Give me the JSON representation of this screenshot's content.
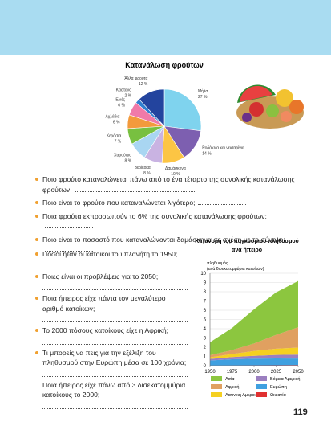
{
  "chart_data": [
    {
      "type": "pie",
      "title": "Κατανάλωση φρούτων",
      "categories": [
        "Μήλα",
        "Ροδάκινα και νεκταρίνια",
        "Δαμάσκηνα",
        "Βερίκοκα",
        "Χαρούπια",
        "Κεράσια",
        "Αχλάδια",
        "Ελιές",
        "Κάστανα",
        "Άλλα φρούτα"
      ],
      "values": [
        27,
        14,
        10,
        8,
        8,
        7,
        6,
        6,
        2,
        12
      ],
      "value_labels": [
        "27 %",
        "14 %",
        "10 %",
        "8 %",
        "8 %",
        "7 %",
        "6 %",
        "6 %",
        "2 %",
        "12 %"
      ],
      "colors": [
        "#7fd3ee",
        "#7d5fb0",
        "#fcc544",
        "#c9b3e2",
        "#a9d6f2",
        "#78c040",
        "#f39a3c",
        "#f07aa8",
        "#2f7fd0",
        "#23449e"
      ]
    },
    {
      "type": "area",
      "stacked": true,
      "title": [
        "Κατανομή του παγκόσμιου πληθυσμού",
        "ανά ήπειρο"
      ],
      "y_label": [
        "πληθυσμός",
        "(ανά δισεκατομμύρια κατοίκων)"
      ],
      "x": [
        1950,
        1975,
        2000,
        2025,
        2050
      ],
      "xlim": [
        1950,
        2050
      ],
      "xticks": [
        1950,
        1975,
        2000,
        2025,
        2050
      ],
      "ylim": [
        0,
        10
      ],
      "yticks": [
        0,
        1,
        2,
        3,
        4,
        5,
        6,
        7,
        8,
        9,
        10
      ],
      "grid": true,
      "series": [
        {
          "name": "Ασία",
          "color": "#8cc63f",
          "values": [
            1.4,
            2.4,
            3.7,
            4.6,
            5.0
          ]
        },
        {
          "name": "Αφρική",
          "color": "#e0a060",
          "values": [
            0.23,
            0.42,
            0.81,
            1.5,
            2.2
          ]
        },
        {
          "name": "Λατινική Αμερική",
          "color": "#f5d020",
          "values": [
            0.17,
            0.32,
            0.52,
            0.68,
            0.76
          ]
        },
        {
          "name": "Βόρεια Αμερική",
          "color": "#9b7fc0",
          "values": [
            0.17,
            0.24,
            0.31,
            0.38,
            0.43
          ]
        },
        {
          "name": "Ευρώπη",
          "color": "#3fa0e0",
          "values": [
            0.55,
            0.68,
            0.73,
            0.74,
            0.71
          ]
        },
        {
          "name": "Ωκεανία",
          "color": "#e03030",
          "values": [
            0.013,
            0.02,
            0.03,
            0.04,
            0.06
          ]
        }
      ]
    }
  ],
  "fruit_questions": [
    "Ποιο φρούτο καταναλώνεται πάνω από το ένα τέταρτο της συνολικής κατανάλωσης φρούτων;",
    "Ποιο είναι το φρούτο που καταναλώνεται λιγότερο;",
    "Ποια φρούτα εκπροσωπούν το 6% της συνολικής κατανάλωσης φρούτων;",
    "Ποιο είναι το ποσοστό που καταναλώνονται δαμάσκηνα σε σχέση με το σύνολο;"
  ],
  "population_questions": [
    "Πόσοι ήταν οι κάτοικοι του πλανήτη το 1950;",
    "Ποιες είναι οι προβλέψεις για το 2050;",
    "Ποια ήπειρος είχε πάντα τον μεγαλύτερο αριθμό κατοίκων;",
    "Το 2000 πόσους κατοίκους είχε η Αφρική;",
    "Τι μπορείς να πεις για την εξέλιξη του πληθυσμού στην Ευρώπη μέσα σε 100 χρόνια;",
    "Ποια ήπειρος είχε πάνω από 3 δισεκατομμύρια κατοίκους το 2000;"
  ],
  "page_number": "119"
}
